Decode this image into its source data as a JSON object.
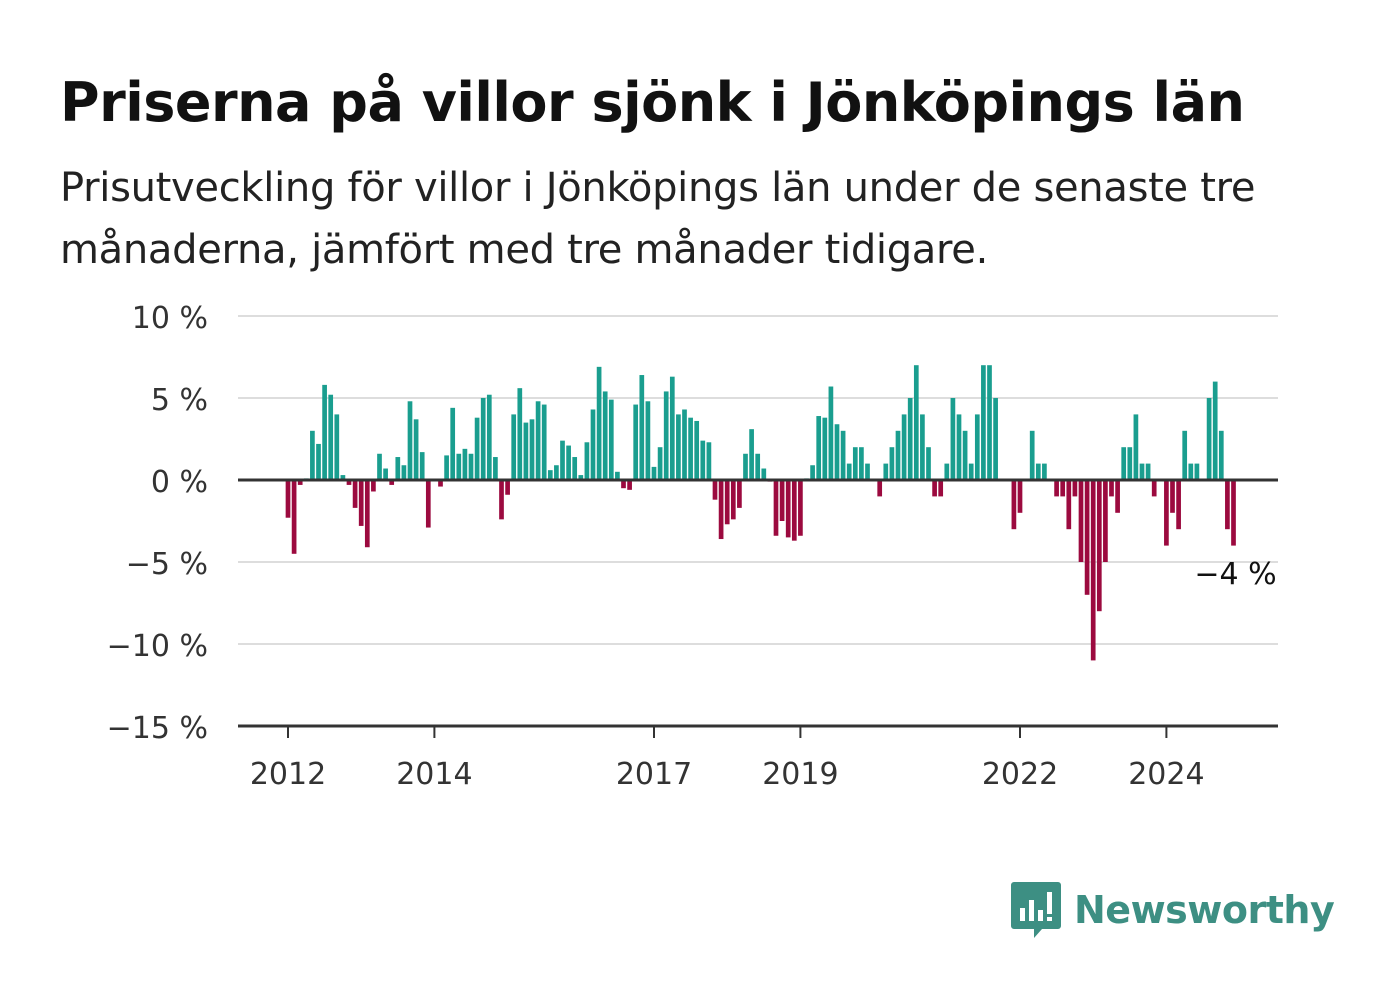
{
  "header": {
    "title": "Priserna på villor sjönk i Jönköpings län",
    "subtitle": "Prisutveckling för villor i Jönköpings län under de senaste tre månaderna, jämfört med tre månader tidigare."
  },
  "logo": {
    "text": "Newsworthy",
    "icon": "bar-chart-speech-bubble-icon"
  },
  "colors": {
    "positive": "#1a9e8f",
    "negative": "#9c0a3f",
    "grid": "#dddddd",
    "axis": "#333333"
  },
  "chart_data": {
    "type": "bar",
    "ylim": [
      -15,
      10
    ],
    "yticks": [
      {
        "value": 10,
        "label": "10 %"
      },
      {
        "value": 5,
        "label": "5 %"
      },
      {
        "value": 0,
        "label": "0 %"
      },
      {
        "value": -5,
        "label": "−5 %"
      },
      {
        "value": -10,
        "label": "−10 %"
      },
      {
        "value": -15,
        "label": "−15 %"
      }
    ],
    "xticks": [
      {
        "index": 0,
        "label": "2012"
      },
      {
        "index": 24,
        "label": "2014"
      },
      {
        "index": 60,
        "label": "2017"
      },
      {
        "index": 84,
        "label": "2019"
      },
      {
        "index": 120,
        "label": "2022"
      },
      {
        "index": 144,
        "label": "2024"
      }
    ],
    "start": "2011-09",
    "frequency": "monthly",
    "values": [
      -2.3,
      -4.5,
      -0.3,
      0.1,
      3.0,
      2.2,
      5.8,
      5.2,
      4.0,
      0.3,
      -0.3,
      -1.7,
      -2.8,
      -4.1,
      -0.7,
      1.6,
      0.7,
      -0.3,
      1.4,
      0.9,
      4.8,
      3.7,
      1.7,
      -2.9,
      0.0,
      -0.4,
      1.5,
      4.4,
      1.6,
      1.9,
      1.6,
      3.8,
      5.0,
      5.2,
      1.4,
      -2.4,
      -0.9,
      4.0,
      5.6,
      3.5,
      3.7,
      4.8,
      4.6,
      0.6,
      0.9,
      2.4,
      2.1,
      1.4,
      0.3,
      2.3,
      4.3,
      6.9,
      5.4,
      4.9,
      0.5,
      -0.5,
      -0.6,
      4.6,
      6.4,
      4.8,
      0.8,
      2.0,
      5.4,
      6.3,
      4.0,
      4.3,
      3.8,
      3.6,
      2.4,
      2.3,
      -1.2,
      -3.6,
      -2.7,
      -2.4,
      -1.7,
      1.6,
      3.1,
      1.6,
      0.7,
      -0.1,
      -3.4,
      -2.5,
      -3.5,
      -3.7,
      -3.4,
      0.1,
      0.9,
      3.9,
      3.8,
      5.7,
      3.4,
      3.0,
      1.0,
      2.0,
      2.0,
      1.0,
      0.0,
      -1.0,
      1.0,
      2.0,
      3.0,
      4.0,
      5.0,
      7.0,
      4.0,
      2.0,
      -1.0,
      -1.0,
      1.0,
      5.0,
      4.0,
      3.0,
      1.0,
      4.0,
      7.0,
      7.0,
      5.0,
      0.0,
      0.0,
      -3.0,
      -2.0,
      0.0,
      3.0,
      1.0,
      1.0,
      0.0,
      -1.0,
      -1.0,
      -3.0,
      -1.0,
      -5.0,
      -7.0,
      -11.0,
      -8.0,
      -5.0,
      -1.0,
      -2.0,
      2.0,
      2.0,
      4.0,
      1.0,
      1.0,
      -1.0,
      0.0,
      -4.0,
      -2.0,
      -3.0,
      3.0,
      1.0,
      1.0,
      0.0,
      5.0,
      6.0,
      3.0,
      -3.0,
      -4.0
    ],
    "annotation": {
      "index": 155,
      "label": "−4 %"
    }
  }
}
